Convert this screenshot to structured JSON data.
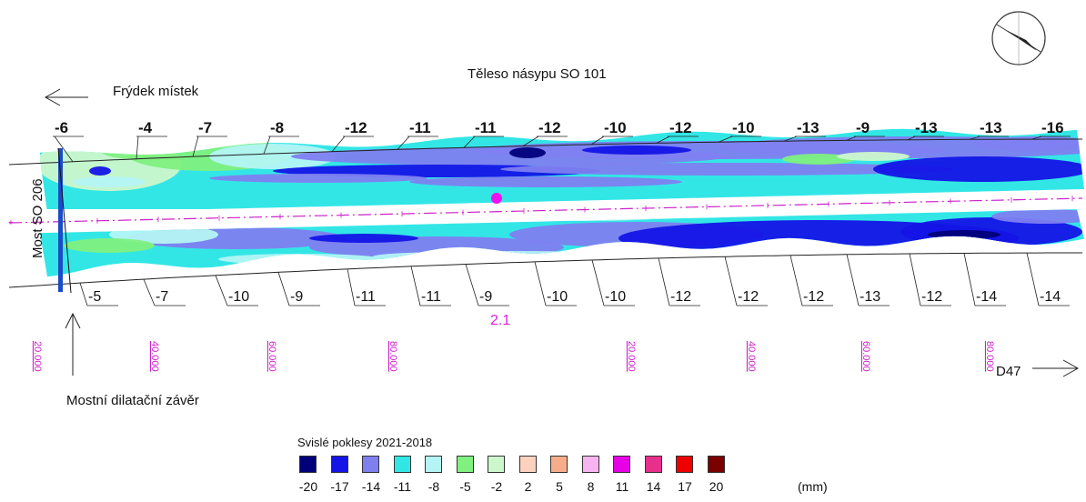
{
  "labels": {
    "title": "Těleso násypu SO 101",
    "frydek": "Frýdek místek",
    "bridge": "Most SO 206",
    "joint": "Mostní dilatační závěr",
    "d47": "D47",
    "point_label": "2.1"
  },
  "top_values": [
    "-6",
    "-4",
    "-7",
    "-8",
    "-12",
    "-11",
    "-11",
    "-12",
    "-10",
    "-12",
    "-10",
    "-13",
    "-9",
    "-13",
    "-13",
    "-16"
  ],
  "bottom_values": [
    "-5",
    "-7",
    "-10",
    "-9",
    "-11",
    "-11",
    "-9",
    "-10",
    "-10",
    "-12",
    "-12",
    "-12",
    "-13",
    "-12",
    "-14",
    "-14"
  ],
  "chainage": [
    "20.000",
    "40.000",
    "60.000",
    "80.000",
    "20.000",
    "40.000",
    "60.000",
    "80.000"
  ],
  "legend": {
    "title": "Svislé poklesy 2021-2018",
    "unit": "(mm)",
    "items": [
      {
        "value": "-20",
        "color": "#00007a"
      },
      {
        "value": "-17",
        "color": "#1414e6"
      },
      {
        "value": "-14",
        "color": "#7f7ff0"
      },
      {
        "value": "-11",
        "color": "#33e6e6"
      },
      {
        "value": "-8",
        "color": "#b4f4f4"
      },
      {
        "value": "-5",
        "color": "#80f080"
      },
      {
        "value": "-2",
        "color": "#ccf7cc"
      },
      {
        "value": "2",
        "color": "#fcd2bf"
      },
      {
        "value": "5",
        "color": "#f8ad8a"
      },
      {
        "value": "8",
        "color": "#f8b4f0"
      },
      {
        "value": "11",
        "color": "#e600e6"
      },
      {
        "value": "14",
        "color": "#e6308c"
      },
      {
        "value": "17",
        "color": "#ee0000"
      },
      {
        "value": "20",
        "color": "#7a0000"
      }
    ]
  },
  "colors": {
    "axis": "#cc22cc",
    "chainage": "#cc22cc"
  }
}
